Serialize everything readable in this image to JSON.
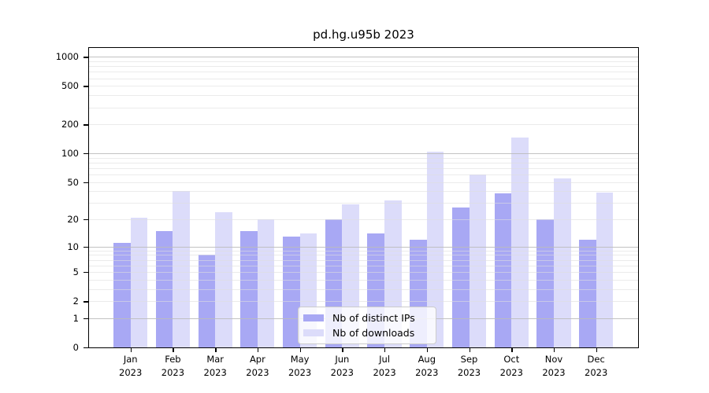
{
  "title": "pd.hg.u95b 2023",
  "legend": {
    "items": [
      {
        "label": "Nb of distinct IPs",
        "color": "#a8a8f4"
      },
      {
        "label": "Nb of downloads",
        "color": "#dcdcfa"
      }
    ]
  },
  "chart_data": {
    "type": "bar",
    "title": "pd.hg.u95b 2023",
    "categories": [
      "Jan 2023",
      "Feb 2023",
      "Mar 2023",
      "Apr 2023",
      "May 2023",
      "Jun 2023",
      "Jul 2023",
      "Aug 2023",
      "Sep 2023",
      "Oct 2023",
      "Nov 2023",
      "Dec 2023"
    ],
    "series": [
      {
        "name": "Nb of distinct IPs",
        "color": "#a8a8f4",
        "values": [
          11,
          15,
          8,
          15,
          13,
          20,
          14,
          12,
          27,
          38,
          20,
          12
        ]
      },
      {
        "name": "Nb of downloads",
        "color": "#dcdcfa",
        "values": [
          21,
          40,
          24,
          20,
          14,
          29,
          32,
          105,
          60,
          145,
          55,
          39
        ]
      }
    ],
    "xlabel": "",
    "ylabel": "",
    "yscale": "log10(1+value)",
    "ylim": [
      0,
      1000
    ],
    "yticks": [
      0,
      1,
      2,
      5,
      10,
      20,
      50,
      100,
      200,
      500,
      1000
    ],
    "minor_gridlines": [
      2,
      3,
      4,
      5,
      6,
      7,
      8,
      9,
      20,
      30,
      40,
      50,
      60,
      70,
      80,
      90,
      200,
      300,
      400,
      500,
      600,
      700,
      800,
      900
    ],
    "major_gridlines": [
      1,
      10,
      100,
      1000
    ],
    "grid": "on",
    "legend_position": "bottom-center"
  }
}
